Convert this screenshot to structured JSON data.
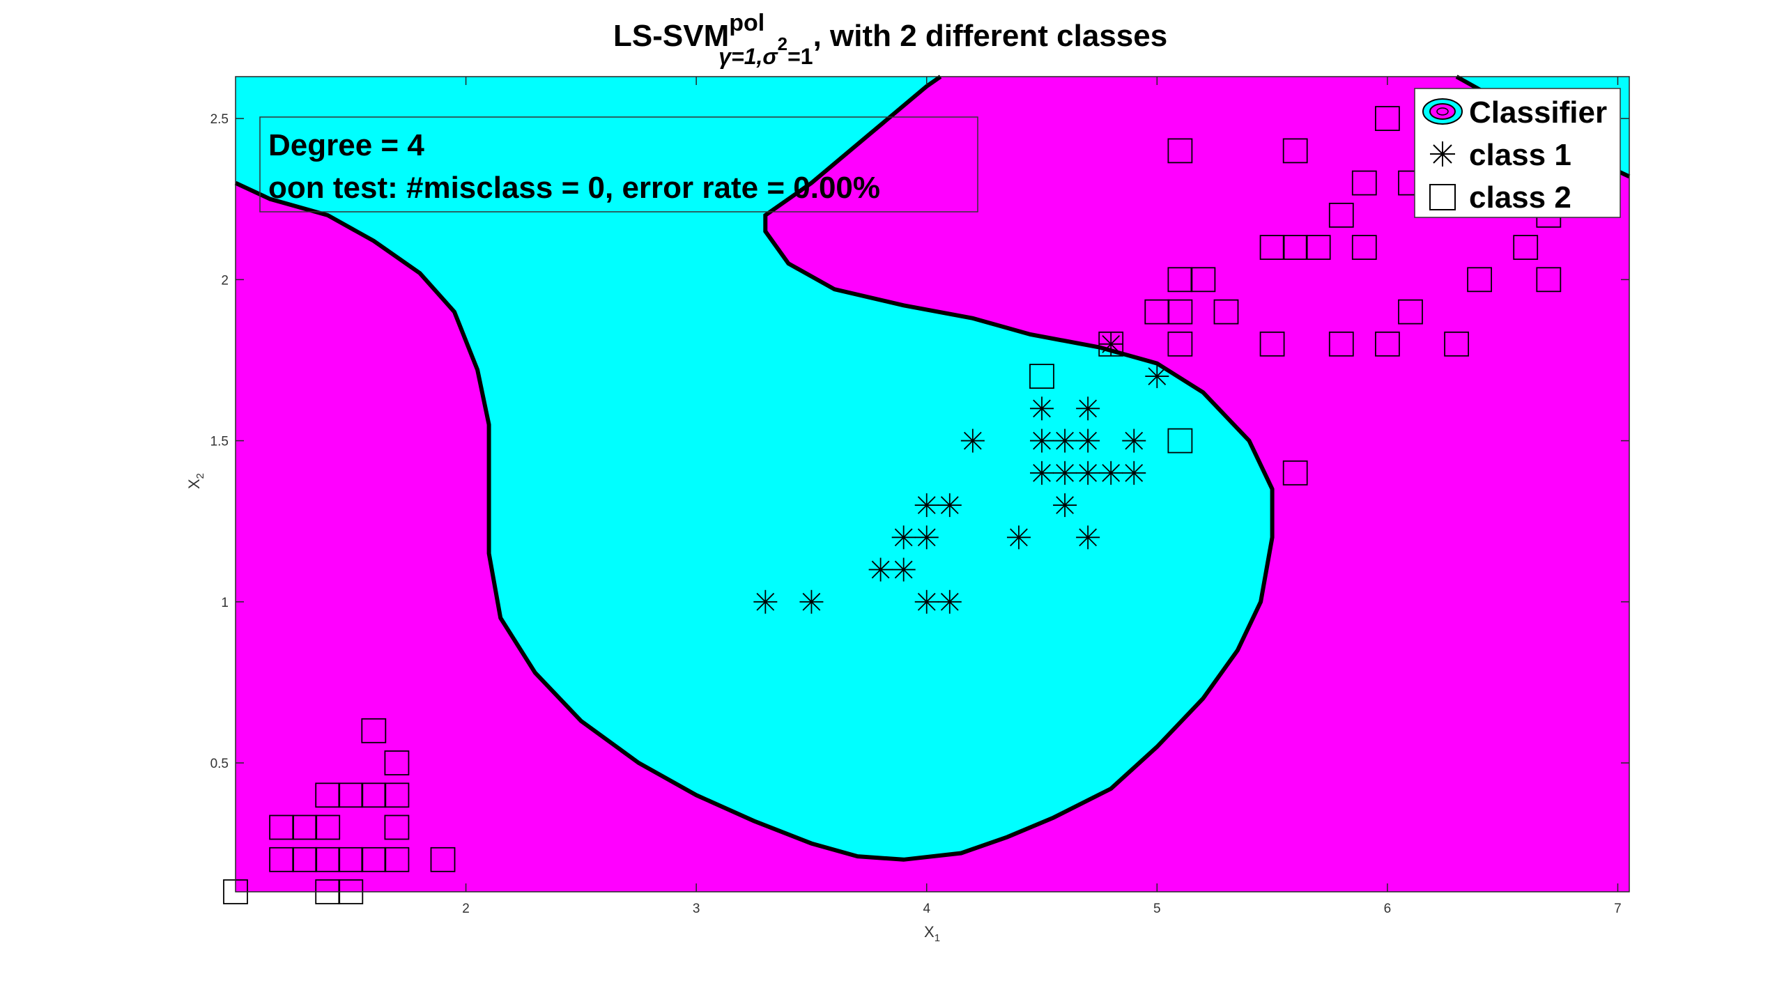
{
  "chart_data": {
    "type": "scatter",
    "title": {
      "main": "LS-SVM",
      "superscript": "pol",
      "subscript_gamma": "γ=1,",
      "subscript_sigma": "σ",
      "subscript_sigma_exp": "2",
      "subscript_tail": "=1",
      "rest": ", with 2 different classes"
    },
    "xlabel": "X",
    "xlabel_sub": "1",
    "ylabel": "X",
    "ylabel_sub": "2",
    "xlim": [
      1.0,
      7.05
    ],
    "ylim": [
      0.1,
      2.63
    ],
    "xticks": [
      2,
      3,
      4,
      5,
      6,
      7
    ],
    "yticks": [
      0.5,
      1,
      1.5,
      2,
      2.5
    ],
    "annotation": {
      "line1": "Degree = 4",
      "line2": "oon test: #misclass = 0, error rate = 0.00%"
    },
    "legend": {
      "position": "top-right",
      "entries": [
        {
          "label": "Classifier",
          "marker": "contour"
        },
        {
          "label": "class 1",
          "marker": "asterisk"
        },
        {
          "label": "class 2",
          "marker": "square"
        }
      ]
    },
    "colors": {
      "class1_region": "#00ffff",
      "class2_region": "#ff00ff",
      "boundary": "#000000"
    },
    "boundary_outline": [
      [
        1.0,
        2.3
      ],
      [
        1.15,
        2.25
      ],
      [
        1.4,
        2.2
      ],
      [
        1.6,
        2.12
      ],
      [
        1.8,
        2.02
      ],
      [
        1.95,
        1.9
      ],
      [
        2.05,
        1.72
      ],
      [
        2.1,
        1.55
      ],
      [
        2.1,
        1.35
      ],
      [
        2.1,
        1.15
      ],
      [
        2.15,
        0.95
      ],
      [
        2.3,
        0.78
      ],
      [
        2.5,
        0.63
      ],
      [
        2.75,
        0.5
      ],
      [
        3.0,
        0.4
      ],
      [
        3.25,
        0.32
      ],
      [
        3.5,
        0.25
      ],
      [
        3.7,
        0.21
      ],
      [
        3.9,
        0.2
      ],
      [
        4.15,
        0.22
      ],
      [
        4.35,
        0.27
      ],
      [
        4.55,
        0.33
      ],
      [
        4.8,
        0.42
      ],
      [
        5.0,
        0.55
      ],
      [
        5.2,
        0.7
      ],
      [
        5.35,
        0.85
      ],
      [
        5.45,
        1.0
      ],
      [
        5.5,
        1.2
      ],
      [
        5.5,
        1.35
      ],
      [
        5.4,
        1.5
      ],
      [
        5.2,
        1.65
      ],
      [
        5.0,
        1.74
      ],
      [
        4.75,
        1.79
      ],
      [
        4.45,
        1.83
      ],
      [
        4.2,
        1.88
      ],
      [
        3.9,
        1.92
      ],
      [
        3.6,
        1.97
      ],
      [
        3.4,
        2.05
      ],
      [
        3.3,
        2.15
      ],
      [
        3.3,
        2.2
      ],
      [
        3.5,
        2.3
      ],
      [
        3.75,
        2.45
      ],
      [
        4.0,
        2.6
      ],
      [
        4.06,
        2.63
      ],
      [
        1.0,
        2.63
      ]
    ],
    "corner_region_top_right": [
      [
        6.3,
        2.63
      ],
      [
        7.05,
        2.63
      ],
      [
        7.05,
        2.32
      ],
      [
        6.75,
        2.42
      ],
      [
        6.5,
        2.55
      ]
    ],
    "series": [
      {
        "name": "class 1",
        "marker": "asterisk",
        "points": [
          [
            3.3,
            1.0
          ],
          [
            3.5,
            1.0
          ],
          [
            3.8,
            1.1
          ],
          [
            3.9,
            1.1
          ],
          [
            3.9,
            1.2
          ],
          [
            4.0,
            1.2
          ],
          [
            4.0,
            1.3
          ],
          [
            4.1,
            1.3
          ],
          [
            4.0,
            1.0
          ],
          [
            4.1,
            1.0
          ],
          [
            4.2,
            1.5
          ],
          [
            4.4,
            1.2
          ],
          [
            4.5,
            1.6
          ],
          [
            4.5,
            1.5
          ],
          [
            4.5,
            1.4
          ],
          [
            4.6,
            1.5
          ],
          [
            4.6,
            1.4
          ],
          [
            4.6,
            1.3
          ],
          [
            4.7,
            1.6
          ],
          [
            4.7,
            1.5
          ],
          [
            4.7,
            1.4
          ],
          [
            4.7,
            1.2
          ],
          [
            4.8,
            1.4
          ],
          [
            4.8,
            1.8
          ],
          [
            4.9,
            1.5
          ],
          [
            4.9,
            1.4
          ],
          [
            5.0,
            1.7
          ]
        ]
      },
      {
        "name": "class 2",
        "marker": "square",
        "points": [
          [
            1.0,
            0.1
          ],
          [
            1.4,
            0.1
          ],
          [
            1.5,
            0.1
          ],
          [
            1.2,
            0.2
          ],
          [
            1.3,
            0.2
          ],
          [
            1.4,
            0.2
          ],
          [
            1.5,
            0.2
          ],
          [
            1.6,
            0.2
          ],
          [
            1.7,
            0.2
          ],
          [
            1.9,
            0.2
          ],
          [
            1.2,
            0.3
          ],
          [
            1.3,
            0.3
          ],
          [
            1.4,
            0.3
          ],
          [
            1.7,
            0.3
          ],
          [
            1.4,
            0.4
          ],
          [
            1.5,
            0.4
          ],
          [
            1.6,
            0.4
          ],
          [
            1.7,
            0.4
          ],
          [
            1.7,
            0.5
          ],
          [
            1.6,
            0.6
          ],
          [
            4.5,
            1.7
          ],
          [
            4.8,
            1.8
          ],
          [
            5.0,
            1.9
          ],
          [
            5.1,
            1.9
          ],
          [
            5.3,
            1.9
          ],
          [
            5.1,
            2.0
          ],
          [
            5.2,
            2.0
          ],
          [
            5.1,
            1.8
          ],
          [
            5.1,
            1.5
          ],
          [
            5.5,
            1.8
          ],
          [
            5.6,
            1.4
          ],
          [
            5.5,
            2.1
          ],
          [
            5.6,
            2.1
          ],
          [
            5.7,
            2.1
          ],
          [
            5.8,
            2.2
          ],
          [
            5.8,
            1.8
          ],
          [
            5.9,
            2.3
          ],
          [
            5.9,
            2.1
          ],
          [
            6.0,
            1.8
          ],
          [
            6.1,
            1.9
          ],
          [
            6.1,
            2.3
          ],
          [
            6.0,
            2.5
          ],
          [
            6.4,
            2.0
          ],
          [
            6.3,
            1.8
          ],
          [
            6.6,
            2.1
          ],
          [
            6.7,
            2.0
          ],
          [
            6.7,
            2.2
          ],
          [
            5.1,
            2.4
          ],
          [
            5.6,
            2.4
          ]
        ]
      }
    ]
  }
}
